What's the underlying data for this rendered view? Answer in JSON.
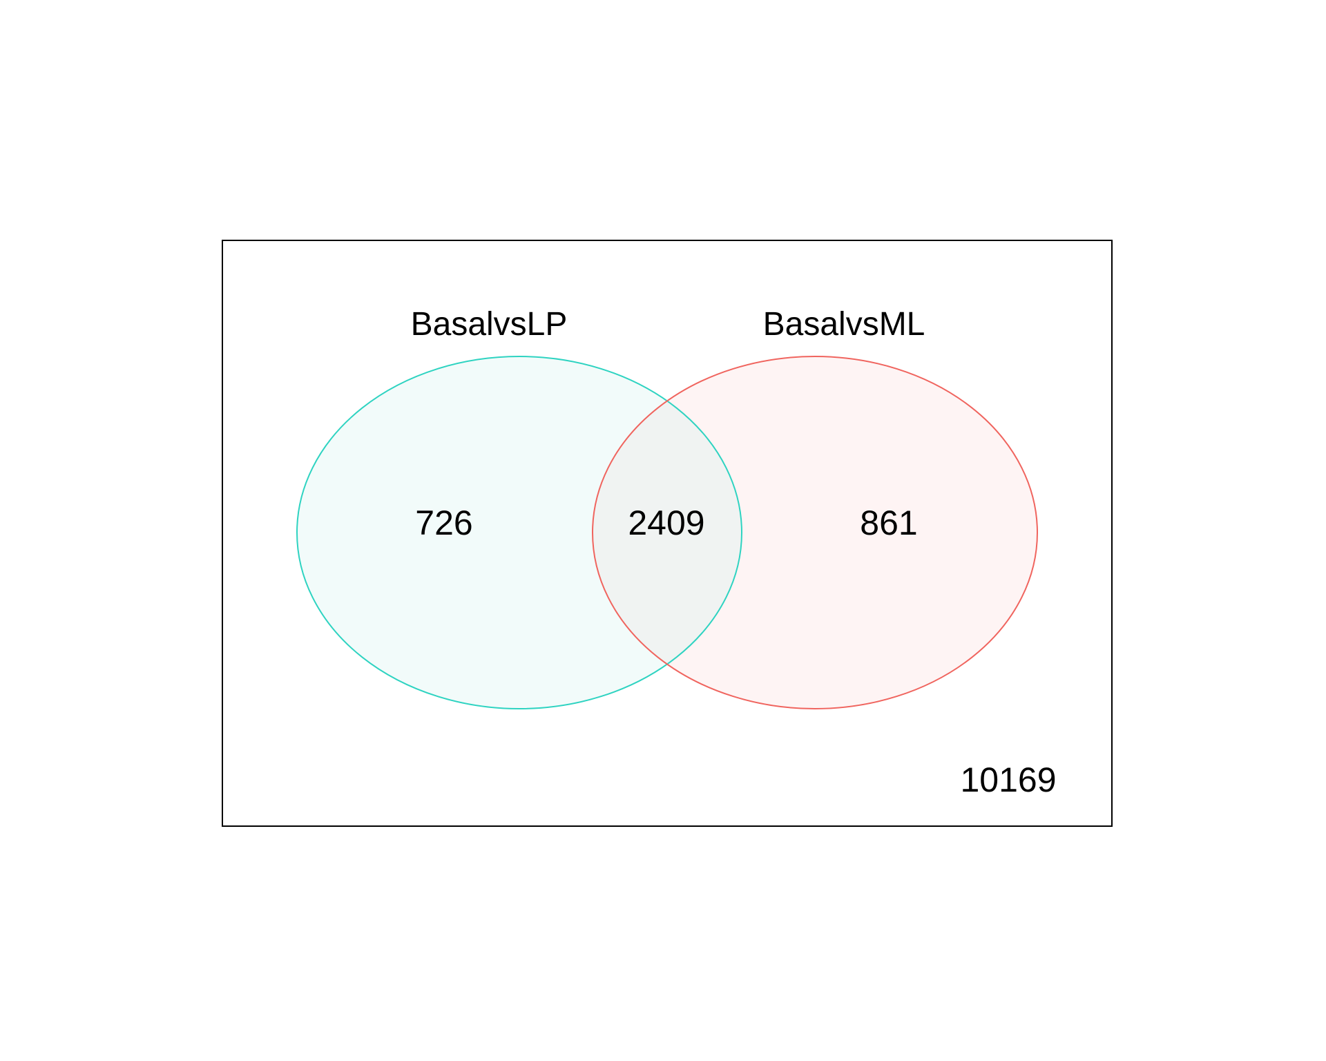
{
  "diagram": {
    "type": "venn",
    "sets": [
      {
        "name": "BasalvsLP",
        "color": "#2ED3C1",
        "fill": "#F2FBFA"
      },
      {
        "name": "BasalvsML",
        "color": "#F0645E",
        "fill": "#FEF4F4"
      }
    ],
    "overlap_fill": "#F0F3F2",
    "counts": {
      "only_basalvslp": "726",
      "both": "2409",
      "only_basalvsml": "861",
      "neither": "10169"
    }
  }
}
